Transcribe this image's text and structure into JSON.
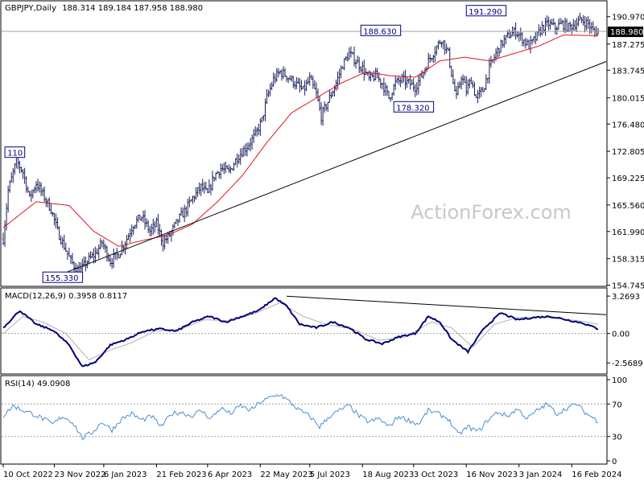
{
  "header": {
    "symbol_line": "GBPJPY,Daily",
    "ohlc": "188.314 189.184 187.958 188.980"
  },
  "watermark": "ActionForex.com",
  "colors": {
    "bars": "#1a1f5a",
    "ma": "#e0141e",
    "macd": "#00007a",
    "signal": "#b0b0b0",
    "rsi": "#4a8fd0",
    "trendline": "#000000",
    "price_marker_bg": "#000000",
    "label_border": "#000080",
    "dotted": "#a0a0a0"
  },
  "price_panel": {
    "yticks": [
      "190.970",
      "187.275",
      "183.745",
      "180.015",
      "176.480",
      "172.805",
      "169.225",
      "165.560",
      "161.990",
      "158.315",
      "154.745"
    ],
    "ytick_values": [
      190.97,
      187.275,
      183.745,
      180.015,
      176.48,
      172.805,
      169.225,
      165.56,
      161.99,
      158.315,
      154.745
    ],
    "ylim": [
      154.7,
      193.0
    ],
    "current_price_label": "188.980",
    "current_price": 188.98,
    "annotations": [
      {
        "text": "110",
        "i": 2,
        "price": 172.2
      },
      {
        "text": "155.330",
        "i": 25,
        "price": 155.33
      },
      {
        "text": "188.630",
        "i": 218,
        "price": 188.63
      },
      {
        "text": "178.320",
        "i": 238,
        "price": 178.32
      },
      {
        "text": "191.290",
        "i": 282,
        "price": 191.29
      }
    ]
  },
  "macd_panel": {
    "label": "MACD(12,26,9) 0.3958 0.8117",
    "yticks": [
      "3.2693",
      "0.00",
      "-2.5689"
    ],
    "ytick_values": [
      3.2693,
      0.0,
      -2.5689
    ],
    "ylim": [
      -3.4,
      3.7
    ]
  },
  "rsi_panel": {
    "label": "RSI(14) 49.0908",
    "yticks": [
      "100",
      "70",
      "30",
      "0"
    ],
    "ytick_values": [
      100,
      70,
      30,
      0
    ],
    "ylim": [
      0,
      100
    ]
  },
  "xaxis": {
    "labels": [
      "10 Oct 2022",
      "23 Nov 2022",
      "6 Jan 2023",
      "21 Feb 2023",
      "6 Apr 2023",
      "22 May 2023",
      "5 Jul 2023",
      "18 Aug 2023",
      "3 Oct 2023",
      "16 Nov 2023",
      "3 Jan 2024",
      "16 Feb 2024"
    ],
    "label_index": [
      0,
      31,
      61,
      93,
      124,
      156,
      186,
      218,
      249,
      281,
      313,
      345
    ]
  },
  "chart_data": {
    "type": "candlestick-bar",
    "symbol": "GBPJPY",
    "timeframe": "Daily",
    "bar_count": 362,
    "close_anchors": [
      {
        "i": 0,
        "v": 161.0
      },
      {
        "i": 3,
        "v": 167.5
      },
      {
        "i": 8,
        "v": 171.5
      },
      {
        "i": 12,
        "v": 170.0
      },
      {
        "i": 16,
        "v": 166.5
      },
      {
        "i": 20,
        "v": 168.5
      },
      {
        "i": 24,
        "v": 167.0
      },
      {
        "i": 29,
        "v": 165.0
      },
      {
        "i": 33,
        "v": 162.0
      },
      {
        "i": 37,
        "v": 160.0
      },
      {
        "i": 41,
        "v": 158.0
      },
      {
        "i": 46,
        "v": 156.5
      },
      {
        "i": 51,
        "v": 158.0
      },
      {
        "i": 56,
        "v": 159.0
      },
      {
        "i": 60,
        "v": 160.5
      },
      {
        "i": 65,
        "v": 158.0
      },
      {
        "i": 70,
        "v": 159.0
      },
      {
        "i": 75,
        "v": 161.0
      },
      {
        "i": 79,
        "v": 163.0
      },
      {
        "i": 84,
        "v": 164.0
      },
      {
        "i": 89,
        "v": 162.0
      },
      {
        "i": 93,
        "v": 163.0
      },
      {
        "i": 97,
        "v": 160.5
      },
      {
        "i": 101,
        "v": 161.5
      },
      {
        "i": 106,
        "v": 163.5
      },
      {
        "i": 111,
        "v": 165.0
      },
      {
        "i": 115,
        "v": 166.5
      },
      {
        "i": 120,
        "v": 168.0
      },
      {
        "i": 124,
        "v": 167.0
      },
      {
        "i": 128,
        "v": 169.5
      },
      {
        "i": 132,
        "v": 170.5
      },
      {
        "i": 137,
        "v": 170.0
      },
      {
        "i": 142,
        "v": 172.0
      },
      {
        "i": 148,
        "v": 173.5
      },
      {
        "i": 153,
        "v": 175.0
      },
      {
        "i": 157,
        "v": 177.0
      },
      {
        "i": 160,
        "v": 180.0
      },
      {
        "i": 164,
        "v": 182.5
      },
      {
        "i": 168,
        "v": 183.5
      },
      {
        "i": 172,
        "v": 183.0
      },
      {
        "i": 177,
        "v": 182.0
      },
      {
        "i": 182,
        "v": 181.0
      },
      {
        "i": 186,
        "v": 182.5
      },
      {
        "i": 190,
        "v": 180.5
      },
      {
        "i": 193,
        "v": 177.5
      },
      {
        "i": 197,
        "v": 179.5
      },
      {
        "i": 202,
        "v": 182.0
      },
      {
        "i": 206,
        "v": 184.5
      },
      {
        "i": 210,
        "v": 186.0
      },
      {
        "i": 214,
        "v": 185.0
      },
      {
        "i": 218,
        "v": 184.0
      },
      {
        "i": 222,
        "v": 182.5
      },
      {
        "i": 226,
        "v": 183.0
      },
      {
        "i": 230,
        "v": 182.0
      },
      {
        "i": 234,
        "v": 180.0
      },
      {
        "i": 238,
        "v": 182.0
      },
      {
        "i": 242,
        "v": 182.5
      },
      {
        "i": 246,
        "v": 182.0
      },
      {
        "i": 250,
        "v": 181.5
      },
      {
        "i": 254,
        "v": 183.0
      },
      {
        "i": 258,
        "v": 185.0
      },
      {
        "i": 262,
        "v": 186.5
      },
      {
        "i": 266,
        "v": 188.0
      },
      {
        "i": 270,
        "v": 186.0
      },
      {
        "i": 273,
        "v": 182.0
      },
      {
        "i": 275,
        "v": 180.0
      },
      {
        "i": 278,
        "v": 183.0
      },
      {
        "i": 281,
        "v": 181.0
      },
      {
        "i": 284,
        "v": 182.5
      },
      {
        "i": 287,
        "v": 180.0
      },
      {
        "i": 291,
        "v": 181.0
      },
      {
        "i": 295,
        "v": 184.0
      },
      {
        "i": 299,
        "v": 186.0
      },
      {
        "i": 303,
        "v": 187.5
      },
      {
        "i": 307,
        "v": 188.5
      },
      {
        "i": 311,
        "v": 189.0
      },
      {
        "i": 315,
        "v": 188.0
      },
      {
        "i": 319,
        "v": 187.0
      },
      {
        "i": 323,
        "v": 188.0
      },
      {
        "i": 327,
        "v": 189.5
      },
      {
        "i": 331,
        "v": 190.0
      },
      {
        "i": 335,
        "v": 189.5
      },
      {
        "i": 339,
        "v": 190.0
      },
      {
        "i": 343,
        "v": 189.5
      },
      {
        "i": 347,
        "v": 190.0
      },
      {
        "i": 351,
        "v": 190.5
      },
      {
        "i": 355,
        "v": 190.0
      },
      {
        "i": 358,
        "v": 189.0
      },
      {
        "i": 361,
        "v": 188.98
      }
    ],
    "ma_anchors": [
      {
        "i": 0,
        "v": 162.5
      },
      {
        "i": 20,
        "v": 166.0
      },
      {
        "i": 40,
        "v": 165.5
      },
      {
        "i": 55,
        "v": 162.0
      },
      {
        "i": 70,
        "v": 160.0
      },
      {
        "i": 85,
        "v": 160.8
      },
      {
        "i": 100,
        "v": 161.5
      },
      {
        "i": 115,
        "v": 163.0
      },
      {
        "i": 130,
        "v": 166.0
      },
      {
        "i": 145,
        "v": 169.5
      },
      {
        "i": 160,
        "v": 174.0
      },
      {
        "i": 175,
        "v": 178.0
      },
      {
        "i": 190,
        "v": 180.0
      },
      {
        "i": 205,
        "v": 182.0
      },
      {
        "i": 220,
        "v": 183.5
      },
      {
        "i": 235,
        "v": 183.0
      },
      {
        "i": 250,
        "v": 182.8
      },
      {
        "i": 265,
        "v": 185.0
      },
      {
        "i": 280,
        "v": 185.5
      },
      {
        "i": 295,
        "v": 185.0
      },
      {
        "i": 310,
        "v": 186.0
      },
      {
        "i": 325,
        "v": 187.0
      },
      {
        "i": 340,
        "v": 188.5
      },
      {
        "i": 361,
        "v": 188.4
      }
    ],
    "trendline": [
      {
        "i": 25,
        "v": 155.33
      },
      {
        "i": 361,
        "v": 184.7
      }
    ],
    "macd_anchors": [
      {
        "i": 0,
        "v": 0.5
      },
      {
        "i": 10,
        "v": 2.0
      },
      {
        "i": 20,
        "v": 0.8
      },
      {
        "i": 30,
        "v": 0.3
      },
      {
        "i": 40,
        "v": -1.0
      },
      {
        "i": 48,
        "v": -2.9
      },
      {
        "i": 56,
        "v": -2.5
      },
      {
        "i": 65,
        "v": -1.0
      },
      {
        "i": 75,
        "v": -0.5
      },
      {
        "i": 85,
        "v": 0.2
      },
      {
        "i": 95,
        "v": 0.4
      },
      {
        "i": 105,
        "v": 0.2
      },
      {
        "i": 115,
        "v": 1.0
      },
      {
        "i": 125,
        "v": 1.5
      },
      {
        "i": 135,
        "v": 1.0
      },
      {
        "i": 145,
        "v": 1.5
      },
      {
        "i": 155,
        "v": 2.0
      },
      {
        "i": 165,
        "v": 3.1
      },
      {
        "i": 172,
        "v": 2.4
      },
      {
        "i": 180,
        "v": 0.8
      },
      {
        "i": 190,
        "v": 0.5
      },
      {
        "i": 200,
        "v": 1.0
      },
      {
        "i": 210,
        "v": 0.5
      },
      {
        "i": 220,
        "v": -0.5
      },
      {
        "i": 230,
        "v": -0.9
      },
      {
        "i": 240,
        "v": -0.3
      },
      {
        "i": 250,
        "v": 0.0
      },
      {
        "i": 258,
        "v": 1.5
      },
      {
        "i": 265,
        "v": 1.0
      },
      {
        "i": 272,
        "v": -0.5
      },
      {
        "i": 282,
        "v": -1.6
      },
      {
        "i": 292,
        "v": 0.5
      },
      {
        "i": 302,
        "v": 1.8
      },
      {
        "i": 312,
        "v": 1.2
      },
      {
        "i": 322,
        "v": 1.4
      },
      {
        "i": 332,
        "v": 1.5
      },
      {
        "i": 342,
        "v": 1.2
      },
      {
        "i": 352,
        "v": 0.9
      },
      {
        "i": 361,
        "v": 0.4
      }
    ],
    "signal_anchors": [
      {
        "i": 0,
        "v": 0.0
      },
      {
        "i": 12,
        "v": 1.5
      },
      {
        "i": 24,
        "v": 1.0
      },
      {
        "i": 38,
        "v": 0.0
      },
      {
        "i": 52,
        "v": -2.3
      },
      {
        "i": 64,
        "v": -1.5
      },
      {
        "i": 78,
        "v": -0.8
      },
      {
        "i": 92,
        "v": 0.2
      },
      {
        "i": 108,
        "v": 0.4
      },
      {
        "i": 122,
        "v": 1.2
      },
      {
        "i": 138,
        "v": 1.1
      },
      {
        "i": 152,
        "v": 1.7
      },
      {
        "i": 168,
        "v": 2.7
      },
      {
        "i": 182,
        "v": 1.5
      },
      {
        "i": 196,
        "v": 0.8
      },
      {
        "i": 212,
        "v": 0.4
      },
      {
        "i": 228,
        "v": -0.6
      },
      {
        "i": 244,
        "v": -0.3
      },
      {
        "i": 260,
        "v": 1.0
      },
      {
        "i": 272,
        "v": 0.5
      },
      {
        "i": 285,
        "v": -1.2
      },
      {
        "i": 298,
        "v": 0.8
      },
      {
        "i": 312,
        "v": 1.4
      },
      {
        "i": 330,
        "v": 1.4
      },
      {
        "i": 350,
        "v": 1.1
      },
      {
        "i": 361,
        "v": 0.81
      }
    ],
    "macd_trendline": [
      {
        "i": 172,
        "v": 3.26
      },
      {
        "i": 361,
        "v": 1.5
      }
    ],
    "rsi_anchors": [
      {
        "i": 0,
        "v": 55
      },
      {
        "i": 6,
        "v": 68
      },
      {
        "i": 12,
        "v": 62
      },
      {
        "i": 18,
        "v": 58
      },
      {
        "i": 24,
        "v": 52
      },
      {
        "i": 30,
        "v": 45
      },
      {
        "i": 36,
        "v": 55
      },
      {
        "i": 42,
        "v": 48
      },
      {
        "i": 48,
        "v": 28
      },
      {
        "i": 54,
        "v": 35
      },
      {
        "i": 60,
        "v": 48
      },
      {
        "i": 66,
        "v": 38
      },
      {
        "i": 72,
        "v": 52
      },
      {
        "i": 78,
        "v": 58
      },
      {
        "i": 84,
        "v": 50
      },
      {
        "i": 90,
        "v": 55
      },
      {
        "i": 96,
        "v": 42
      },
      {
        "i": 102,
        "v": 58
      },
      {
        "i": 108,
        "v": 60
      },
      {
        "i": 114,
        "v": 55
      },
      {
        "i": 120,
        "v": 62
      },
      {
        "i": 126,
        "v": 52
      },
      {
        "i": 132,
        "v": 65
      },
      {
        "i": 138,
        "v": 58
      },
      {
        "i": 144,
        "v": 68
      },
      {
        "i": 150,
        "v": 62
      },
      {
        "i": 156,
        "v": 72
      },
      {
        "i": 162,
        "v": 78
      },
      {
        "i": 168,
        "v": 82
      },
      {
        "i": 174,
        "v": 72
      },
      {
        "i": 180,
        "v": 62
      },
      {
        "i": 186,
        "v": 55
      },
      {
        "i": 192,
        "v": 42
      },
      {
        "i": 198,
        "v": 55
      },
      {
        "i": 204,
        "v": 62
      },
      {
        "i": 210,
        "v": 68
      },
      {
        "i": 216,
        "v": 55
      },
      {
        "i": 222,
        "v": 48
      },
      {
        "i": 228,
        "v": 52
      },
      {
        "i": 234,
        "v": 42
      },
      {
        "i": 240,
        "v": 55
      },
      {
        "i": 246,
        "v": 50
      },
      {
        "i": 252,
        "v": 45
      },
      {
        "i": 258,
        "v": 62
      },
      {
        "i": 264,
        "v": 58
      },
      {
        "i": 270,
        "v": 52
      },
      {
        "i": 276,
        "v": 32
      },
      {
        "i": 282,
        "v": 42
      },
      {
        "i": 288,
        "v": 36
      },
      {
        "i": 294,
        "v": 50
      },
      {
        "i": 300,
        "v": 60
      },
      {
        "i": 306,
        "v": 55
      },
      {
        "i": 312,
        "v": 64
      },
      {
        "i": 318,
        "v": 52
      },
      {
        "i": 324,
        "v": 62
      },
      {
        "i": 330,
        "v": 70
      },
      {
        "i": 336,
        "v": 58
      },
      {
        "i": 342,
        "v": 65
      },
      {
        "i": 348,
        "v": 70
      },
      {
        "i": 354,
        "v": 58
      },
      {
        "i": 361,
        "v": 49
      }
    ]
  }
}
